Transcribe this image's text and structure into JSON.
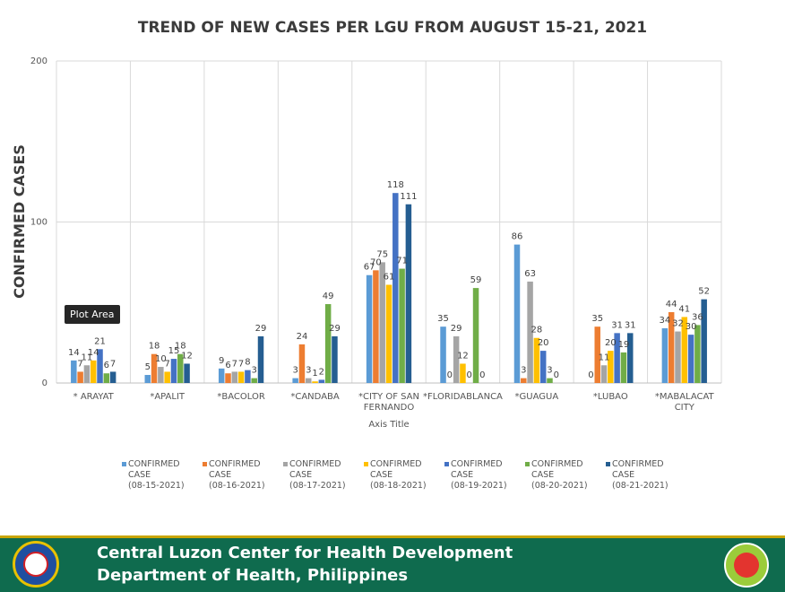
{
  "chart_data": {
    "type": "bar",
    "title": "TREND OF NEW CASES PER LGU FROM AUGUST 15-21, 2021",
    "xlabel": "Axis Title",
    "ylabel": "CONFIRMED CASES",
    "ylim": [
      0,
      200
    ],
    "yticks": [
      "0",
      "100",
      "200"
    ],
    "grid": true,
    "legend_position": "bottom",
    "categories": [
      [
        "* ARAYAT"
      ],
      [
        "*APALIT"
      ],
      [
        "*BACOLOR"
      ],
      [
        "*CANDABA"
      ],
      [
        "*CITY OF SAN",
        "FERNANDO"
      ],
      [
        "*FLORIDABLANCA"
      ],
      [
        "*GUAGUA"
      ],
      [
        "*LUBAO"
      ],
      [
        "*MABALACAT",
        "CITY"
      ]
    ],
    "series": [
      {
        "name": [
          "CONFIRMED",
          "CASE",
          "(08-15-2021)"
        ],
        "color": "#5b9bd5",
        "values": [
          14,
          5,
          9,
          3,
          67,
          35,
          86,
          0,
          34
        ]
      },
      {
        "name": [
          "CONFIRMED",
          "CASE",
          "(08-16-2021)"
        ],
        "color": "#ed7d31",
        "values": [
          7,
          18,
          6,
          24,
          70,
          0,
          3,
          35,
          44
        ]
      },
      {
        "name": [
          "CONFIRMED",
          "CASE",
          "(08-17-2021)"
        ],
        "color": "#a5a5a5",
        "values": [
          11,
          10,
          7,
          3,
          75,
          29,
          63,
          11,
          32
        ]
      },
      {
        "name": [
          "CONFIRMED",
          "CASE",
          "(08-18-2021)"
        ],
        "color": "#ffc000",
        "values": [
          14,
          7,
          7,
          1,
          61,
          12,
          28,
          20,
          41
        ]
      },
      {
        "name": [
          "CONFIRMED",
          "CASE",
          "(08-19-2021)"
        ],
        "color": "#4472c4",
        "values": [
          21,
          15,
          8,
          2,
          118,
          0,
          20,
          31,
          30
        ]
      },
      {
        "name": [
          "CONFIRMED",
          "CASE",
          "(08-20-2021)"
        ],
        "color": "#70ad47",
        "values": [
          6,
          18,
          3,
          49,
          71,
          59,
          3,
          19,
          36
        ]
      },
      {
        "name": [
          "CONFIRMED",
          "CASE",
          "(08-21-2021)"
        ],
        "color": "#255e91",
        "values": [
          7,
          12,
          29,
          29,
          111,
          0,
          0,
          31,
          52
        ]
      }
    ]
  },
  "tooltip": {
    "text": "Plot Area"
  },
  "footer": {
    "line1": "Central Luzon Center for Health Development",
    "line2": "Department of Health, Philippines",
    "seal_icon": "philippine-doh-seal-icon",
    "badge_icon": "universal-health-care-badge-icon",
    "background": "#0f6b4e",
    "accent": "#c8a400"
  }
}
